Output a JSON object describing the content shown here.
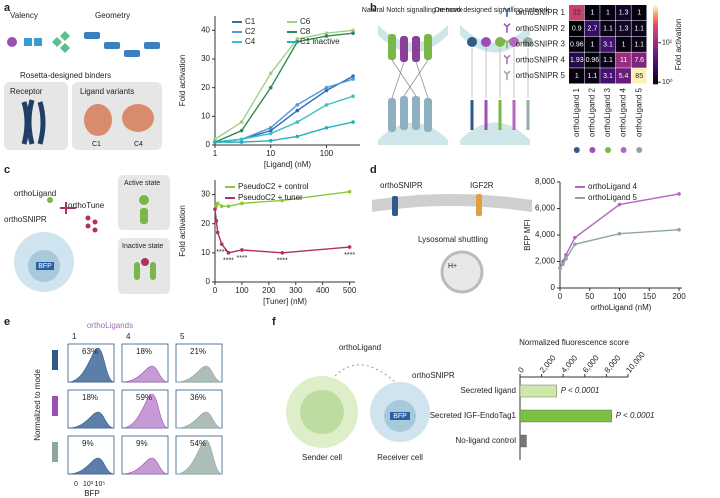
{
  "panel_labels": [
    "a",
    "b",
    "c",
    "d",
    "e",
    "f"
  ],
  "panel_a": {
    "valency": "Valency",
    "geometry": "Geometry",
    "binders": "Rosetta-designed binders",
    "receptor": "Receptor",
    "ligands": "Ligand variants",
    "variants": [
      "C1",
      "C4"
    ]
  },
  "panel_b": {
    "natural": "Natural Notch signalling network",
    "denovo": "De-novo-designed signalling network"
  },
  "panel_c": {
    "ligand": "orthoLigand",
    "tune": "orthoTune",
    "snipr": "orthoSNIPR",
    "reporter": "BFP",
    "active": "Active state",
    "inactive": "Inactive state"
  },
  "panel_d": {
    "snipr": "orthoSNIPR",
    "igf2r": "IGF2R",
    "shuttle": "Lysosomal shuttling",
    "proton": "H+"
  },
  "panel_e": {
    "title": "orthoLigands",
    "columns": [
      "1",
      "4",
      "5"
    ],
    "percent": [
      [
        "63%",
        "18%",
        "21%"
      ],
      [
        "18%",
        "59%",
        "36%"
      ],
      [
        "9%",
        "9%",
        "54%"
      ]
    ],
    "ylabel": "Normalized to mode",
    "xlabel": "BFP",
    "xticks": [
      "0",
      "10³",
      "10⁵"
    ]
  },
  "panel_f": {
    "ligand": "orthoLigand",
    "snipr": "orthoSNIPR",
    "sender": "Sender cell",
    "receiver": "Receiver cell",
    "reporter": "BFP"
  },
  "chart_data": [
    {
      "type": "line",
      "x_log": true,
      "x": [
        1,
        3,
        10,
        30,
        100,
        300
      ],
      "xlim": [
        1,
        400
      ],
      "xticks": [
        1,
        10,
        100
      ],
      "ylim": [
        0,
        45
      ],
      "yticks": [
        0,
        10,
        20,
        30,
        40
      ],
      "xlabel": "[Ligand] (nM)",
      "ylabel": "Fold activation",
      "series": [
        {
          "name": "C1",
          "color": "#2f6db5",
          "values": [
            1,
            2,
            5,
            12,
            19,
            24
          ]
        },
        {
          "name": "C2",
          "color": "#4f9ad8",
          "values": [
            1,
            2,
            6,
            14,
            20,
            23
          ]
        },
        {
          "name": "C4",
          "color": "#3cbfbf",
          "values": [
            1,
            2,
            4,
            8,
            14,
            17
          ]
        },
        {
          "name": "C6",
          "color": "#9fd08a",
          "values": [
            2,
            8,
            25,
            37,
            39,
            40
          ]
        },
        {
          "name": "C8",
          "color": "#2e8b57",
          "values": [
            1,
            5,
            20,
            36,
            38,
            39
          ]
        },
        {
          "name": "C1 inactive",
          "color": "#25b0c0",
          "values": [
            1,
            1,
            1.5,
            3,
            6,
            8
          ]
        }
      ]
    },
    {
      "type": "heatmap",
      "rows": [
        "orthoSNIPR 1",
        "orthoSNIPR 2",
        "orthoSNIPR 3",
        "orthoSNIPR 4",
        "orthoSNIPR 5"
      ],
      "columns": [
        "orthoLigand 1",
        "orthoLigand 2",
        "orthoLigand 3",
        "orthoLigand 4",
        "orthoLigand 5"
      ],
      "values": [
        [
          22,
          1,
          1,
          1.3,
          1
        ],
        [
          0.9,
          2.7,
          1.1,
          1.3,
          1.1
        ],
        [
          0.96,
          1,
          3.1,
          1,
          1.1
        ],
        [
          1.93,
          0.96,
          1.1,
          11,
          7.6
        ],
        [
          1,
          1.1,
          3.1,
          5.4,
          85
        ]
      ],
      "clim": [
        0.9,
        90
      ],
      "color_log": true,
      "cticks": [
        {
          "value": 10,
          "label": "10¹"
        },
        {
          "value": 1,
          "label": "10⁰"
        }
      ],
      "colorbar_label": "Fold activation"
    },
    {
      "type": "line",
      "x": [
        0,
        5,
        10,
        25,
        50,
        100,
        250,
        500
      ],
      "xlim": [
        0,
        520
      ],
      "xticks": [
        0,
        100,
        200,
        300,
        400,
        500
      ],
      "ylim": [
        0,
        35
      ],
      "yticks": [
        0,
        10,
        20,
        30
      ],
      "xlabel": "[Tuner] (nM)",
      "ylabel": "Fold activation",
      "series": [
        {
          "name": "PseudoC2 + control",
          "color": "#8cc63f",
          "values": [
            25,
            26,
            27,
            26,
            26,
            27,
            28,
            31
          ]
        },
        {
          "name": "PseudoC2 + tuner",
          "color": "#b03060",
          "values": [
            25,
            21,
            17,
            13,
            10,
            11,
            10,
            12
          ]
        }
      ],
      "annotations": [
        "****",
        "****",
        "****",
        "****",
        "****"
      ]
    },
    {
      "type": "line",
      "x": [
        0,
        5,
        10,
        25,
        100,
        200
      ],
      "xlim": [
        0,
        205
      ],
      "xticks": [
        0,
        50,
        100,
        150,
        200
      ],
      "ylim": [
        0,
        8000
      ],
      "yticks": [
        0,
        {
          "value": 2000,
          "label": "2,000"
        },
        {
          "value": 4000,
          "label": "4,000"
        },
        {
          "value": 6000,
          "label": "6,000"
        },
        {
          "value": 8000,
          "label": "8,000"
        }
      ],
      "xlabel": "orthoLigand (nM)",
      "ylabel": "BFP MFI",
      "series": [
        {
          "name": "orthoLigand 4",
          "color": "#b565c0",
          "values": [
            1500,
            2000,
            2500,
            3800,
            6300,
            7100
          ]
        },
        {
          "name": "orthoLigand 5",
          "color": "#8fa6a0",
          "values": [
            1500,
            1800,
            2200,
            3300,
            4100,
            4400
          ]
        }
      ]
    },
    {
      "type": "hbar",
      "title": "Normalized fluorescence score",
      "categories": [
        "Secreted ligand",
        "Secreted IGF-EndoTag1",
        "No-ligand control"
      ],
      "values": [
        3400,
        8500,
        600
      ],
      "colors": [
        "#cde8a8",
        "#7ac143",
        "#777777"
      ],
      "xlim": [
        0,
        10000
      ],
      "xticks": [
        0,
        {
          "value": 2000,
          "label": "2,000"
        },
        {
          "value": 4000,
          "label": "4,000"
        },
        {
          "value": 6000,
          "label": "6,000"
        },
        {
          "value": 8000,
          "label": "8,000"
        },
        {
          "value": 10000,
          "label": "10,000"
        }
      ],
      "annotations": [
        "P < 0.0001",
        "P < 0.0001"
      ]
    }
  ]
}
